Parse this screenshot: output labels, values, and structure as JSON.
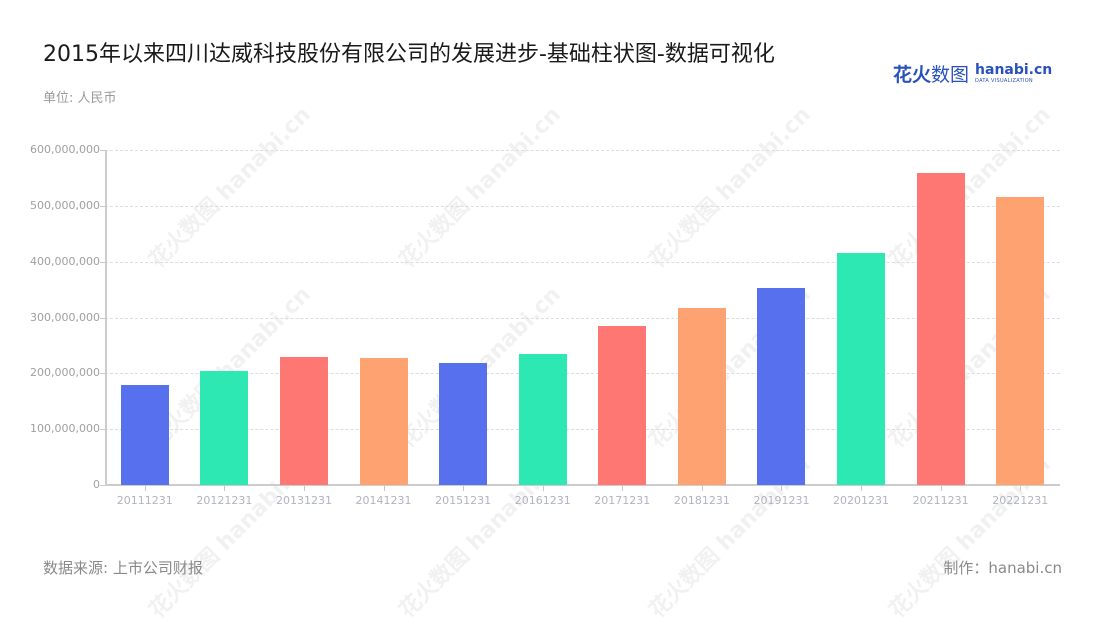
{
  "header": {
    "title": "2015年以来四川达威科技股份有限公司的发展进步-基础柱状图-数据可视化",
    "unit": "单位: 人民币"
  },
  "logo": {
    "cn_bold": "花火",
    "cn_thin": "数图",
    "en_main": "hanabi.cn",
    "en_sub": "DATA VISUALIZATION"
  },
  "footer": {
    "source": "数据来源: 上市公司财报",
    "maker": "制作：hanabi.cn"
  },
  "watermark_text": "花火数图 hanabi.cn",
  "chart_data": {
    "type": "bar",
    "title": "2015年以来四川达威科技股份有限公司的发展进步-基础柱状图-数据可视化",
    "xlabel": "",
    "ylabel": "单位: 人民币",
    "ylim": [
      0,
      600000000
    ],
    "yticks": [
      0,
      100000000,
      200000000,
      300000000,
      400000000,
      500000000,
      600000000
    ],
    "ytick_labels": [
      "0",
      "100,000,000",
      "200,000,000",
      "300,000,000",
      "400,000,000",
      "500,000,000",
      "600,000,000"
    ],
    "grid": true,
    "legend": "none",
    "categories": [
      "20111231",
      "20121231",
      "20131231",
      "20141231",
      "20151231",
      "20161231",
      "20171231",
      "20181231",
      "20191231",
      "20201231",
      "20211231",
      "20221231"
    ],
    "values": [
      179000000,
      204000000,
      229000000,
      227000000,
      218000000,
      235000000,
      285000000,
      317000000,
      353000000,
      416000000,
      559000000,
      516000000
    ],
    "colors": [
      "#5670ee",
      "#2ee8b4",
      "#ff7772",
      "#fea271",
      "#5670ee",
      "#2ee8b4",
      "#ff7772",
      "#fea271",
      "#5670ee",
      "#2ee8b4",
      "#ff7772",
      "#fea271"
    ]
  }
}
